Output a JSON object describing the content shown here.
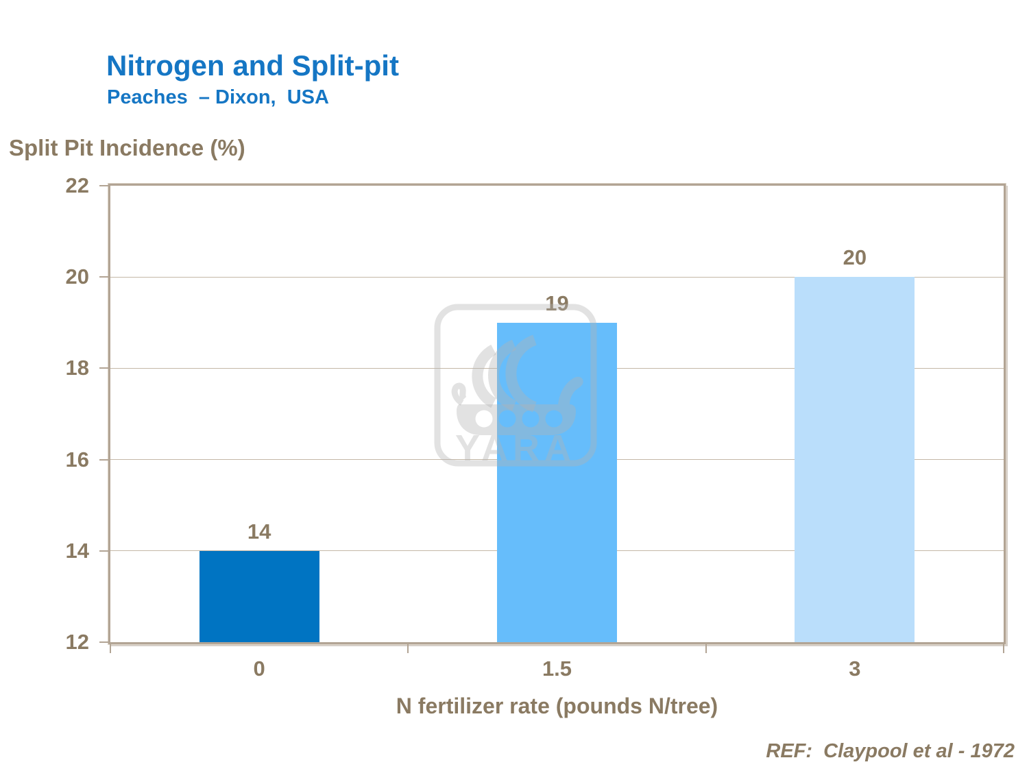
{
  "chart_data": {
    "type": "bar",
    "title": "Nitrogen and Split-pit",
    "subtitle": "Peaches  – Dixon,  USA",
    "ylabel": "Split Pit Incidence (%)",
    "xlabel": "N fertilizer rate (pounds N/tree)",
    "categories": [
      "0",
      "1.5",
      "3"
    ],
    "values": [
      14,
      19,
      20
    ],
    "bar_labels": [
      "14",
      "19",
      "20"
    ],
    "bar_colors": [
      "#0074C2",
      "#66BDFB",
      "#BADEFB"
    ],
    "ylim": [
      12,
      22
    ],
    "yticks": [
      22,
      20,
      18,
      16,
      14,
      12
    ],
    "grid": true,
    "legend_position": "none"
  },
  "footer": {
    "reference": "REF:  Claypool et al - 1972"
  },
  "watermark": {
    "wordmark": "YARA",
    "icon": "viking-ship-logo"
  },
  "colors": {
    "title_blue": "#1576C4",
    "text_brown": "#8A7A62",
    "axis_line": "#B2A494",
    "gridline": "#C4B7A6",
    "watermark_gray": "rgba(178,178,178,0.38)"
  }
}
